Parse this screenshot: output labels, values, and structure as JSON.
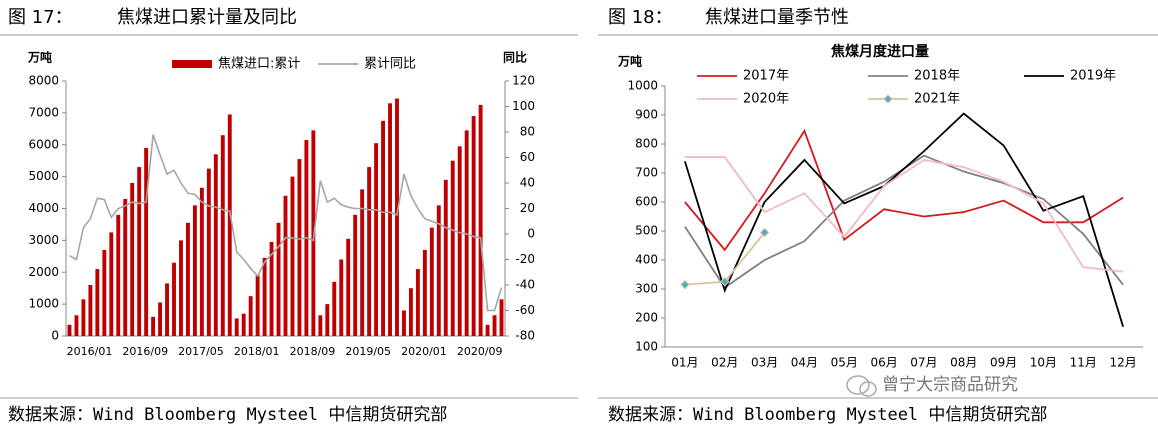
{
  "captions": [
    {
      "label": "图 17：",
      "title": "焦煤进口累计量及同比"
    },
    {
      "label": "图 18：",
      "title": "焦煤进口量季节性"
    }
  ],
  "sources": [
    "数据来源：Wind Bloomberg Mysteel 中信期货研究部",
    "数据来源：Wind Bloomberg Mysteel 中信期货研究部"
  ],
  "watermark": "曾宁大宗商品研究",
  "chart_data": [
    {
      "type": "bar",
      "ylabel": "万吨",
      "y2label": "同比",
      "categories": [
        "2016/01",
        null,
        null,
        null,
        null,
        null,
        null,
        null,
        "2016/09",
        null,
        null,
        null,
        null,
        null,
        null,
        null,
        "2017/05",
        null,
        null,
        null,
        null,
        null,
        null,
        null,
        "2018/01",
        null,
        null,
        null,
        null,
        null,
        null,
        null,
        "2018/09",
        null,
        null,
        null,
        null,
        null,
        null,
        null,
        "2019/05",
        null,
        null,
        null,
        null,
        null,
        null,
        null,
        "2020/01",
        null,
        null,
        null,
        null,
        null,
        null,
        null,
        "2020/09",
        null,
        null,
        null,
        null,
        null,
        null
      ],
      "series": [
        {
          "name": "焦煤进口:累计",
          "color": "#c00000",
          "values": [
            350,
            650,
            1150,
            1600,
            2100,
            2700,
            3250,
            3800,
            4300,
            4800,
            5300,
            5900,
            600,
            1050,
            1650,
            2300,
            3000,
            3550,
            4100,
            4650,
            5250,
            5700,
            6300,
            6950,
            550,
            700,
            1250,
            1900,
            2450,
            2950,
            3550,
            4400,
            5000,
            5550,
            6150,
            6450,
            650,
            1000,
            1700,
            2400,
            3050,
            3800,
            4600,
            5300,
            6050,
            6750,
            7300,
            7450,
            800,
            1500,
            2100,
            2700,
            3400,
            4100,
            4900,
            5500,
            5950,
            6450,
            6900,
            7250,
            350,
            650,
            1150
          ]
        },
        {
          "name": "累计同比",
          "color": "#a6a6a6",
          "type": "line",
          "axis": "y2",
          "values": [
            -17,
            -20,
            5,
            12,
            28,
            27,
            13,
            20,
            22,
            25,
            24,
            25,
            78,
            62,
            47,
            50,
            40,
            32,
            31,
            25,
            22,
            21,
            19,
            18,
            -14,
            -20,
            -27,
            -33,
            -22,
            -16,
            -10,
            -3,
            -3,
            -4,
            -3,
            -5,
            42,
            25,
            28,
            23,
            21,
            20,
            20,
            19,
            19,
            17,
            17,
            15,
            47,
            30,
            20,
            12,
            10,
            8,
            5,
            3,
            1,
            0,
            -2,
            -3,
            -60,
            -60,
            -42
          ]
        }
      ],
      "ylim": [
        0,
        8000
      ],
      "yticks": [
        0,
        1000,
        2000,
        3000,
        4000,
        5000,
        6000,
        7000,
        8000
      ],
      "y2lim": [
        -80,
        120
      ],
      "y2ticks": [
        -80,
        -60,
        -40,
        -20,
        0,
        20,
        40,
        60,
        80,
        100,
        120
      ],
      "legend": "top"
    },
    {
      "type": "line",
      "title": "焦煤月度进口量",
      "ylabel": "万吨",
      "categories": [
        "01月",
        "02月",
        "03月",
        "04月",
        "05月",
        "06月",
        "07月",
        "08月",
        "09月",
        "10月",
        "11月",
        "12月"
      ],
      "series": [
        {
          "name": "2017年",
          "color": "#d7191c",
          "values": [
            600,
            435,
            630,
            845,
            470,
            575,
            550,
            565,
            605,
            530,
            530,
            615
          ]
        },
        {
          "name": "2018年",
          "color": "#808080",
          "values": [
            515,
            305,
            400,
            465,
            605,
            670,
            760,
            705,
            665,
            610,
            490,
            315
          ]
        },
        {
          "name": "2019年",
          "color": "#000000",
          "values": [
            740,
            295,
            600,
            745,
            595,
            655,
            775,
            905,
            795,
            570,
            620,
            170
          ]
        },
        {
          "name": "2020年",
          "color": "#f4b9c4",
          "values": [
            755,
            755,
            565,
            630,
            480,
            655,
            745,
            720,
            670,
            595,
            375,
            360
          ]
        },
        {
          "name": "2021年",
          "color": "#d9c49a",
          "marker": "diamond",
          "marker_color": "#4bacc6",
          "values": [
            315,
            325,
            495,
            null,
            null,
            null,
            null,
            null,
            null,
            null,
            null,
            null
          ]
        }
      ],
      "ylim": [
        100,
        1000
      ],
      "yticks": [
        100,
        200,
        300,
        400,
        500,
        600,
        700,
        800,
        900,
        1000
      ],
      "legend": "top"
    }
  ]
}
